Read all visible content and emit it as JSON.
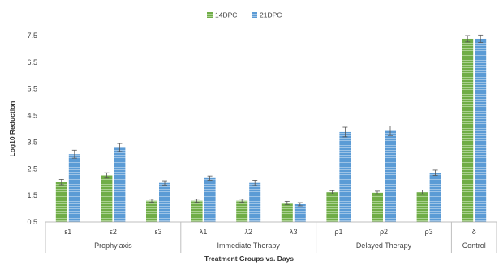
{
  "chart_data": {
    "type": "bar",
    "ylabel": "Log10 Reduction",
    "xlabel": "Treatment Groups vs. Days",
    "ylim": [
      0.5,
      7.5
    ],
    "yticks": [
      "0.5",
      "1.5",
      "2.5",
      "3.5",
      "4.5",
      "5.5",
      "6.5",
      "7.5"
    ],
    "legend_position": "top-center",
    "grid": false,
    "categories": [
      "ε1",
      "ε2",
      "ε3",
      "λ1",
      "λ2",
      "λ3",
      "ρ1",
      "ρ2",
      "ρ3",
      "δ"
    ],
    "groups": [
      {
        "label": "Prophylaxis",
        "categories": [
          "ε1",
          "ε2",
          "ε3"
        ]
      },
      {
        "label": "Immediate Therapy",
        "categories": [
          "λ1",
          "λ2",
          "λ3"
        ]
      },
      {
        "label": "Delayed Therapy",
        "categories": [
          "ρ1",
          "ρ2",
          "ρ3"
        ]
      },
      {
        "label": "Control",
        "categories": [
          "δ"
        ]
      }
    ],
    "series": [
      {
        "name": "14DPC",
        "color": "#70ad47",
        "values": [
          2.0,
          2.25,
          1.3,
          1.3,
          1.3,
          1.22,
          1.62,
          1.6,
          1.62,
          7.38
        ],
        "errors": [
          0.1,
          0.1,
          0.06,
          0.06,
          0.06,
          0.06,
          0.06,
          0.06,
          0.08,
          0.12
        ]
      },
      {
        "name": "21DPC",
        "color": "#5b9bd5",
        "values": [
          3.05,
          3.3,
          1.97,
          2.15,
          1.97,
          1.17,
          3.88,
          3.93,
          2.35,
          7.38
        ],
        "errors": [
          0.15,
          0.15,
          0.08,
          0.08,
          0.1,
          0.06,
          0.18,
          0.18,
          0.1,
          0.14
        ]
      }
    ]
  }
}
